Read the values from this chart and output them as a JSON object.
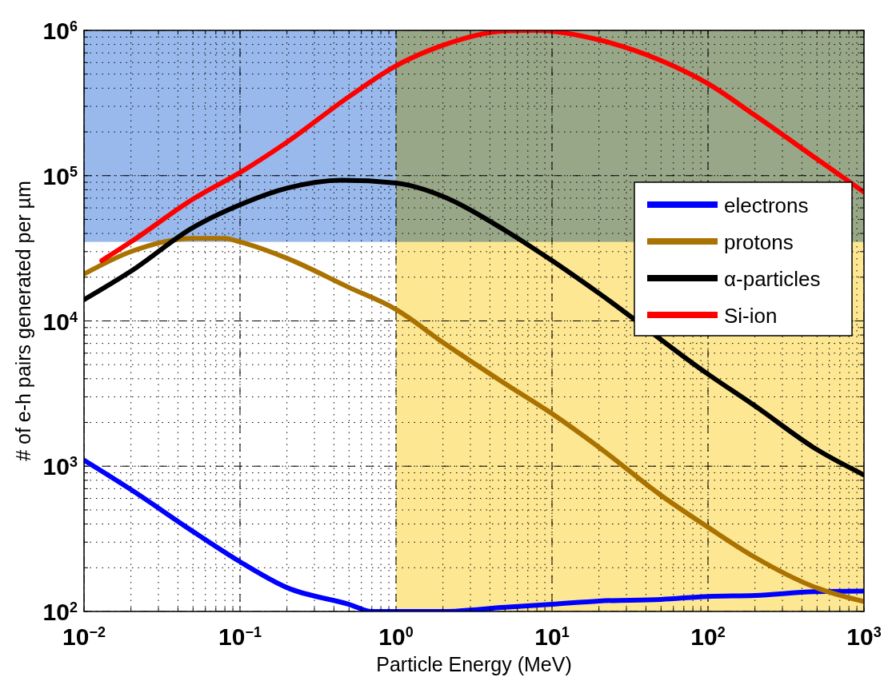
{
  "chart_data": {
    "type": "line",
    "xlabel": "Particle Energy (MeV)",
    "ylabel": "# of e-h pairs generated per µm",
    "log": "xy",
    "grid": true,
    "legend": "right",
    "line_style": "solid",
    "xlim": [
      0.01,
      1000
    ],
    "ylim": [
      100,
      1000000
    ],
    "xticks": [
      {
        "value": 0.01,
        "label": "10$^{−2}$"
      },
      {
        "value": 0.1,
        "label": "10$^{−1}$"
      },
      {
        "value": 1,
        "label": "10$^{0}$"
      },
      {
        "value": 10,
        "label": "10$^{1}$"
      },
      {
        "value": 100,
        "label": "10$^{2}$"
      },
      {
        "value": 1000,
        "label": "10$^{3}$"
      }
    ],
    "yticks": [
      {
        "value": 100,
        "label": "10$^{2}$"
      },
      {
        "value": 1000,
        "label": "10$^{3}$"
      },
      {
        "value": 10000,
        "label": "10$^{4}$"
      },
      {
        "value": 100000,
        "label": "10$^{5}$"
      },
      {
        "value": 1000000,
        "label": "10$^{6}$"
      }
    ],
    "bands": [
      {
        "axis": "x",
        "from": 1,
        "to": 1000,
        "color": "#fde793"
      },
      {
        "axis": "y",
        "from": 35000,
        "to": 1000000,
        "color": "#99b9ec"
      }
    ],
    "series": [
      {
        "name": "electrons",
        "color": "#0000ff",
        "x": [
          0.01,
          0.02,
          0.05,
          0.1,
          0.2,
          0.5,
          0.7,
          1,
          2,
          5,
          10,
          20,
          50,
          100,
          200,
          500,
          1000
        ],
        "values": [
          1100,
          690,
          355,
          220,
          146,
          112,
          100,
          100,
          100,
          107,
          112,
          118,
          121,
          127,
          129,
          137,
          138
        ]
      },
      {
        "name": "protons",
        "color": "#aa7200",
        "x": [
          0.01,
          0.02,
          0.05,
          0.08,
          0.1,
          0.2,
          0.5,
          1,
          2,
          5,
          10,
          20,
          50,
          100,
          200,
          500,
          1000
        ],
        "values": [
          21000,
          30000,
          37000,
          37000,
          35000,
          27000,
          17000,
          12000,
          7100,
          3700,
          2300,
          1350,
          630,
          380,
          236,
          145,
          117
        ]
      },
      {
        "name": "α-particles",
        "color": "#000000",
        "x": [
          0.01,
          0.02,
          0.05,
          0.1,
          0.2,
          0.45,
          1,
          2,
          5,
          10,
          20,
          100,
          200,
          500,
          1000
        ],
        "values": [
          14000,
          22000,
          44000,
          63000,
          82000,
          93000,
          89000,
          72000,
          42000,
          26000,
          15500,
          4300,
          2600,
          1300,
          870
        ]
      },
      {
        "name": "Si-ion",
        "color": "#ff0000",
        "x": [
          0.013,
          0.02,
          0.05,
          0.1,
          0.2,
          0.5,
          1,
          2,
          5,
          8,
          20,
          50,
          100,
          200,
          500,
          1000
        ],
        "values": [
          26000,
          35000,
          69000,
          105000,
          170000,
          350000,
          570000,
          790000,
          990000,
          1000000,
          860000,
          620000,
          430000,
          260000,
          130000,
          77000
        ]
      }
    ]
  }
}
